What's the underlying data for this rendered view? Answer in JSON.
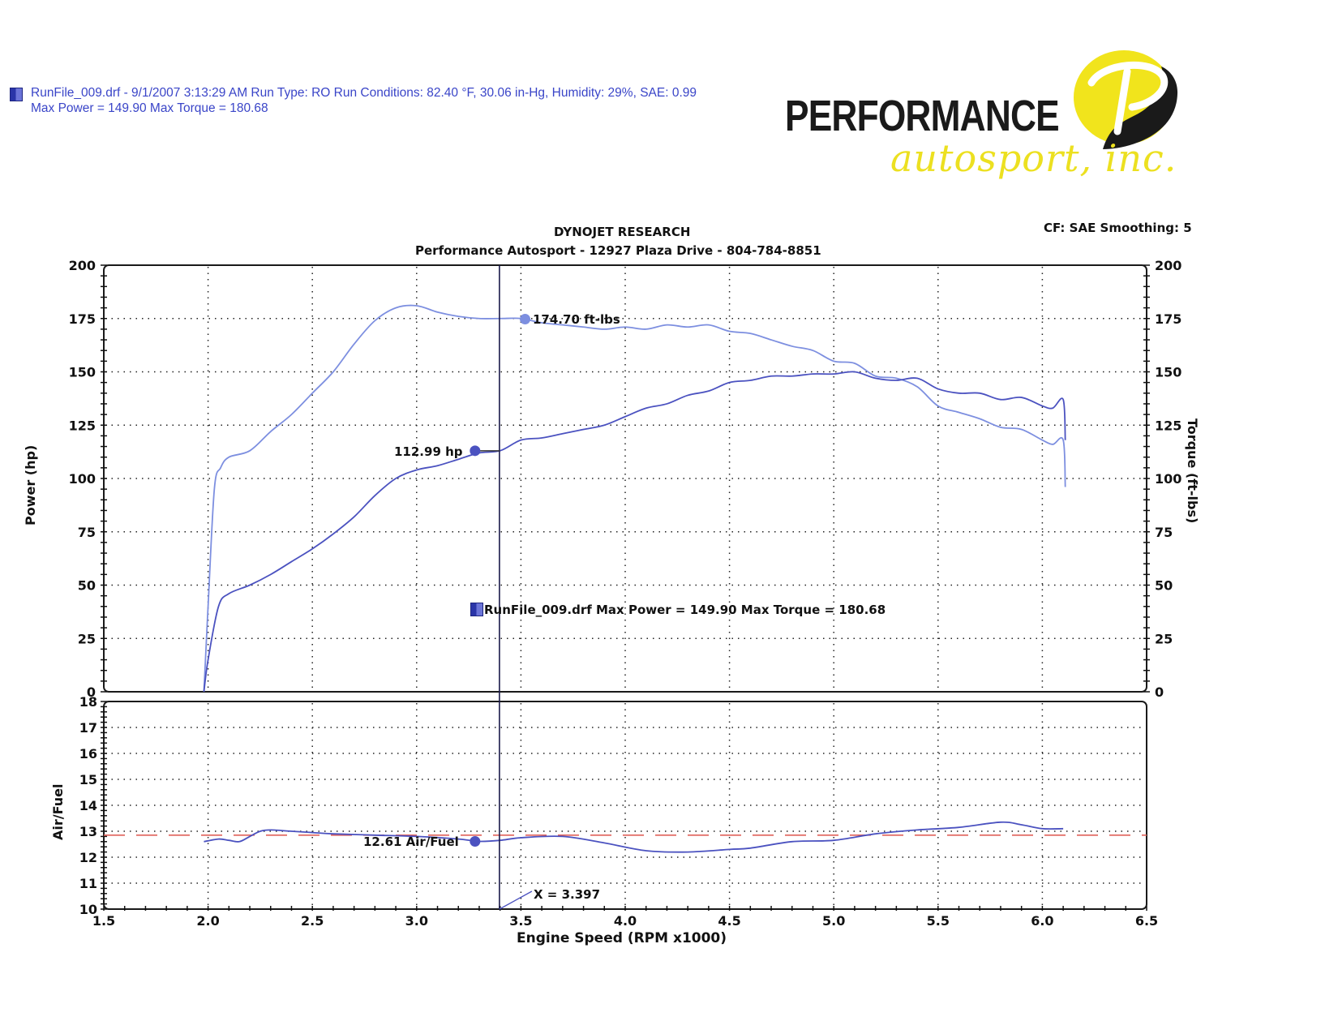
{
  "header": {
    "run_line": "RunFile_009.drf - 9/1/2007 3:13:29 AM  Run Type: RO  Run Conditions: 82.40 °F, 30.06 in-Hg,  Humidity:  29%, SAE: 0.99",
    "max_line": "Max Power = 149.90  Max Torque = 180.68"
  },
  "logo": {
    "word": "PERFORMANCE",
    "script": "autosport, inc.",
    "colors": {
      "yellow": "#f1e41c",
      "black": "#1a1a1a"
    }
  },
  "chart_header": {
    "title": "DYNOJET RESEARCH",
    "subtitle": "Performance Autosport - 12927 Plaza Drive - 804-784-8851",
    "settings": "CF: SAE  Smoothing: 5"
  },
  "labels": {
    "y_left": "Power (hp)",
    "y_right": "Torque (ft-lbs)",
    "y_afr": "Air/Fuel",
    "x": "Engine Speed (RPM x1000)",
    "legend": "RunFile_009.drf Max Power = 149.90     Max Torque = 180.68",
    "torque_marker": "174.70 ft-lbs",
    "power_marker": "112.99 hp",
    "afr_marker": "12.61 Air/Fuel",
    "cursor": "X = 3.397"
  },
  "colors": {
    "power": "#4b52c0",
    "torque": "#7d8fe0",
    "afr": "#4b52c0",
    "afr_target": "#e0625a",
    "cursor": "#1a1a4a",
    "grid": "#222222"
  },
  "chart_data": [
    {
      "type": "line",
      "title": "DYNOJET RESEARCH",
      "subtitle": "Performance Autosport - 12927 Plaza Drive - 804-784-8851",
      "xlabel": "Engine Speed (RPM x1000)",
      "ylabel": "Power (hp)",
      "ylabel_right": "Torque (ft-lbs)",
      "xlim": [
        1.5,
        6.5
      ],
      "ylim": [
        0,
        200
      ],
      "x_ticks": [
        1.5,
        2.0,
        2.5,
        3.0,
        3.5,
        4.0,
        4.5,
        5.0,
        5.5,
        6.0,
        6.5
      ],
      "y_ticks": [
        0,
        25,
        50,
        75,
        100,
        125,
        150,
        175,
        200
      ],
      "grid": true,
      "cursor_x": 3.397,
      "series": [
        {
          "name": "Power (hp)",
          "x": [
            1.98,
            2.0,
            2.05,
            2.1,
            2.2,
            2.3,
            2.4,
            2.5,
            2.6,
            2.7,
            2.8,
            2.9,
            3.0,
            3.1,
            3.2,
            3.3,
            3.4,
            3.5,
            3.6,
            3.7,
            3.8,
            3.9,
            4.0,
            4.1,
            4.2,
            4.3,
            4.4,
            4.5,
            4.6,
            4.7,
            4.8,
            4.9,
            5.0,
            5.1,
            5.2,
            5.3,
            5.4,
            5.5,
            5.6,
            5.7,
            5.8,
            5.9,
            6.0,
            6.05,
            6.1,
            6.11
          ],
          "values": [
            0,
            15,
            40,
            46,
            50,
            55,
            61,
            67,
            74,
            82,
            92,
            100,
            104,
            106,
            109,
            112,
            113,
            118,
            119,
            121,
            123,
            125,
            129,
            133,
            135,
            139,
            141,
            145,
            146,
            148,
            148,
            149,
            149,
            150,
            147,
            146,
            147,
            142,
            140,
            140,
            137,
            138,
            134,
            133,
            137,
            118
          ]
        },
        {
          "name": "Torque (ft-lbs)",
          "x": [
            1.98,
            2.0,
            2.03,
            2.06,
            2.1,
            2.2,
            2.3,
            2.4,
            2.5,
            2.6,
            2.7,
            2.8,
            2.9,
            3.0,
            3.1,
            3.2,
            3.3,
            3.4,
            3.5,
            3.6,
            3.7,
            3.8,
            3.9,
            4.0,
            4.1,
            4.2,
            4.3,
            4.4,
            4.5,
            4.6,
            4.7,
            4.8,
            4.9,
            5.0,
            5.1,
            5.2,
            5.3,
            5.4,
            5.5,
            5.6,
            5.7,
            5.8,
            5.9,
            6.0,
            6.05,
            6.1,
            6.11
          ],
          "values": [
            0,
            40,
            95,
            105,
            110,
            113,
            122,
            130,
            140,
            150,
            163,
            174,
            180,
            181,
            178,
            176,
            175,
            175,
            175,
            173,
            172,
            171,
            170,
            171,
            170,
            172,
            171,
            172,
            169,
            168,
            165,
            162,
            160,
            155,
            154,
            148,
            147,
            143,
            134,
            131,
            128,
            124,
            123,
            118,
            116,
            118,
            96
          ]
        }
      ],
      "annotations": [
        {
          "x": 3.52,
          "y": 174.7,
          "text": "174.70 ft-lbs"
        },
        {
          "x": 3.28,
          "y": 112.99,
          "text": "112.99 hp"
        }
      ],
      "legend": "RunFile_009.drf Max Power = 149.90     Max Torque = 180.68"
    },
    {
      "type": "line",
      "xlabel": "Engine Speed (RPM x1000)",
      "ylabel": "Air/Fuel",
      "xlim": [
        1.5,
        6.5
      ],
      "ylim": [
        10,
        18
      ],
      "x_ticks": [
        1.5,
        2.0,
        2.5,
        3.0,
        3.5,
        4.0,
        4.5,
        5.0,
        5.5,
        6.0,
        6.5
      ],
      "y_ticks": [
        10,
        11,
        12,
        13,
        14,
        15,
        16,
        17,
        18
      ],
      "grid": true,
      "series": [
        {
          "name": "Air/Fuel",
          "x": [
            1.98,
            2.05,
            2.1,
            2.15,
            2.2,
            2.25,
            2.3,
            2.4,
            2.5,
            2.6,
            2.8,
            3.0,
            3.2,
            3.3,
            3.4,
            3.5,
            3.7,
            3.9,
            4.1,
            4.3,
            4.5,
            4.6,
            4.8,
            5.0,
            5.2,
            5.4,
            5.6,
            5.8,
            5.9,
            6.0,
            6.1
          ],
          "values": [
            12.6,
            12.7,
            12.65,
            12.6,
            12.8,
            13.0,
            13.05,
            13.0,
            12.95,
            12.9,
            12.85,
            12.8,
            12.7,
            12.61,
            12.65,
            12.75,
            12.8,
            12.55,
            12.25,
            12.2,
            12.3,
            12.35,
            12.6,
            12.65,
            12.9,
            13.05,
            13.15,
            13.35,
            13.25,
            13.1,
            13.1
          ]
        },
        {
          "name": "Target",
          "x": [
            1.5,
            6.5
          ],
          "values": [
            12.85,
            12.85
          ],
          "style": "dashed"
        }
      ],
      "annotations": [
        {
          "x": 3.28,
          "y": 12.61,
          "text": "12.61 Air/Fuel"
        },
        {
          "x": 3.397,
          "y": 10,
          "text": "X = 3.397"
        }
      ]
    }
  ]
}
